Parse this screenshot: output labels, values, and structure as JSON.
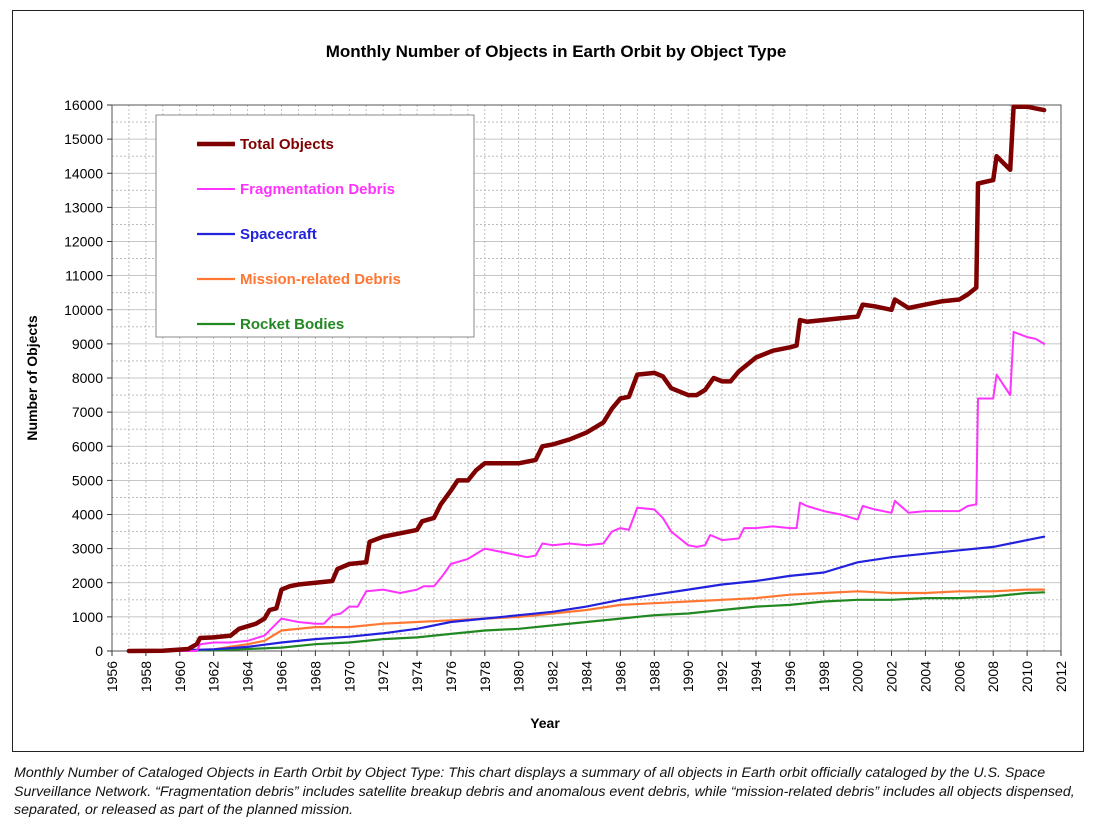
{
  "chart_data": {
    "type": "line",
    "title": "Monthly Number of Objects in Earth Orbit by Object Type",
    "xlabel": "Year",
    "ylabel": "Number of Objects",
    "xlim": [
      1956,
      2012
    ],
    "ylim": [
      0,
      16000
    ],
    "x_ticks": [
      "1956",
      "1958",
      "1960",
      "1962",
      "1964",
      "1966",
      "1968",
      "1970",
      "1972",
      "1974",
      "1976",
      "1978",
      "1980",
      "1982",
      "1984",
      "1986",
      "1988",
      "1990",
      "1992",
      "1994",
      "1996",
      "1998",
      "2000",
      "2002",
      "2004",
      "2006",
      "2008",
      "2010",
      "2012"
    ],
    "y_ticks": [
      "0",
      "1000",
      "2000",
      "3000",
      "4000",
      "5000",
      "6000",
      "7000",
      "8000",
      "9000",
      "10000",
      "11000",
      "12000",
      "13000",
      "14000",
      "15000",
      "16000"
    ],
    "grid": true,
    "legend_position": "top-left",
    "series": [
      {
        "name": "Total Objects",
        "color": "#7f0000",
        "points": [
          [
            1957,
            0
          ],
          [
            1959,
            10
          ],
          [
            1960.5,
            60
          ],
          [
            1961,
            200
          ],
          [
            1961.2,
            380
          ],
          [
            1962,
            400
          ],
          [
            1963,
            450
          ],
          [
            1963.5,
            650
          ],
          [
            1964.5,
            800
          ],
          [
            1965,
            950
          ],
          [
            1965.3,
            1200
          ],
          [
            1965.7,
            1250
          ],
          [
            1966,
            1800
          ],
          [
            1966.5,
            1900
          ],
          [
            1967,
            1950
          ],
          [
            1968,
            2000
          ],
          [
            1969,
            2050
          ],
          [
            1969.3,
            2400
          ],
          [
            1970,
            2550
          ],
          [
            1971,
            2600
          ],
          [
            1971.2,
            3200
          ],
          [
            1972,
            3350
          ],
          [
            1973,
            3450
          ],
          [
            1974,
            3550
          ],
          [
            1974.3,
            3800
          ],
          [
            1975,
            3900
          ],
          [
            1975.4,
            4300
          ],
          [
            1976,
            4700
          ],
          [
            1976.4,
            5000
          ],
          [
            1977,
            5000
          ],
          [
            1977.5,
            5300
          ],
          [
            1978,
            5500
          ],
          [
            1979,
            5500
          ],
          [
            1980,
            5500
          ],
          [
            1981,
            5600
          ],
          [
            1981.4,
            6000
          ],
          [
            1982,
            6050
          ],
          [
            1983,
            6200
          ],
          [
            1984,
            6400
          ],
          [
            1985,
            6700
          ],
          [
            1985.5,
            7100
          ],
          [
            1986,
            7400
          ],
          [
            1986.5,
            7450
          ],
          [
            1987,
            8100
          ],
          [
            1988,
            8150
          ],
          [
            1988.5,
            8050
          ],
          [
            1989,
            7700
          ],
          [
            1990,
            7500
          ],
          [
            1990.5,
            7500
          ],
          [
            1991,
            7650
          ],
          [
            1991.5,
            8000
          ],
          [
            1992,
            7900
          ],
          [
            1992.5,
            7900
          ],
          [
            1993,
            8200
          ],
          [
            1994,
            8600
          ],
          [
            1995,
            8800
          ],
          [
            1996,
            8900
          ],
          [
            1996.4,
            8950
          ],
          [
            1996.6,
            9700
          ],
          [
            1997,
            9650
          ],
          [
            1998,
            9700
          ],
          [
            1999,
            9750
          ],
          [
            2000,
            9800
          ],
          [
            2000.3,
            10150
          ],
          [
            2001,
            10100
          ],
          [
            2002,
            10000
          ],
          [
            2002.2,
            10300
          ],
          [
            2003,
            10050
          ],
          [
            2004,
            10150
          ],
          [
            2005,
            10250
          ],
          [
            2006,
            10300
          ],
          [
            2006.5,
            10450
          ],
          [
            2007,
            10650
          ],
          [
            2007.1,
            13700
          ],
          [
            2008,
            13800
          ],
          [
            2008.2,
            14500
          ],
          [
            2009,
            14100
          ],
          [
            2009.2,
            15950
          ],
          [
            2010,
            15950
          ],
          [
            2010.5,
            15900
          ],
          [
            2011,
            15850
          ]
        ]
      },
      {
        "name": "Fragmentation Debris",
        "color": "#ff33ff",
        "points": [
          [
            1957,
            0
          ],
          [
            1961,
            0
          ],
          [
            1961.2,
            200
          ],
          [
            1962,
            250
          ],
          [
            1963,
            250
          ],
          [
            1964,
            300
          ],
          [
            1965,
            450
          ],
          [
            1965.5,
            700
          ],
          [
            1966,
            950
          ],
          [
            1966.5,
            900
          ],
          [
            1967,
            850
          ],
          [
            1968,
            800
          ],
          [
            1968.5,
            800
          ],
          [
            1969,
            1050
          ],
          [
            1969.5,
            1100
          ],
          [
            1970,
            1300
          ],
          [
            1970.5,
            1300
          ],
          [
            1971,
            1750
          ],
          [
            1972,
            1800
          ],
          [
            1973,
            1700
          ],
          [
            1974,
            1800
          ],
          [
            1974.4,
            1900
          ],
          [
            1975,
            1900
          ],
          [
            1975.5,
            2200
          ],
          [
            1976,
            2550
          ],
          [
            1977,
            2700
          ],
          [
            1978,
            3000
          ],
          [
            1979,
            2900
          ],
          [
            1980,
            2800
          ],
          [
            1980.5,
            2750
          ],
          [
            1981,
            2800
          ],
          [
            1981.4,
            3150
          ],
          [
            1982,
            3100
          ],
          [
            1983,
            3150
          ],
          [
            1984,
            3100
          ],
          [
            1985,
            3150
          ],
          [
            1985.5,
            3500
          ],
          [
            1986,
            3600
          ],
          [
            1986.5,
            3550
          ],
          [
            1987,
            4200
          ],
          [
            1988,
            4150
          ],
          [
            1988.5,
            3900
          ],
          [
            1989,
            3500
          ],
          [
            1990,
            3100
          ],
          [
            1990.5,
            3050
          ],
          [
            1991,
            3100
          ],
          [
            1991.3,
            3400
          ],
          [
            1992,
            3250
          ],
          [
            1993,
            3300
          ],
          [
            1993.3,
            3600
          ],
          [
            1994,
            3600
          ],
          [
            1995,
            3650
          ],
          [
            1996,
            3600
          ],
          [
            1996.4,
            3600
          ],
          [
            1996.6,
            4350
          ],
          [
            1997,
            4250
          ],
          [
            1998,
            4100
          ],
          [
            1999,
            4000
          ],
          [
            2000,
            3850
          ],
          [
            2000.3,
            4250
          ],
          [
            2001,
            4150
          ],
          [
            2002,
            4050
          ],
          [
            2002.2,
            4400
          ],
          [
            2003,
            4050
          ],
          [
            2004,
            4100
          ],
          [
            2005,
            4100
          ],
          [
            2006,
            4100
          ],
          [
            2006.5,
            4250
          ],
          [
            2007,
            4300
          ],
          [
            2007.1,
            7400
          ],
          [
            2008,
            7400
          ],
          [
            2008.2,
            8100
          ],
          [
            2009,
            7500
          ],
          [
            2009.2,
            9350
          ],
          [
            2010,
            9200
          ],
          [
            2010.5,
            9150
          ],
          [
            2011,
            9000
          ]
        ]
      },
      {
        "name": "Spacecraft",
        "color": "#2222dd",
        "points": [
          [
            1957,
            0
          ],
          [
            1960,
            20
          ],
          [
            1962,
            50
          ],
          [
            1964,
            120
          ],
          [
            1966,
            250
          ],
          [
            1968,
            350
          ],
          [
            1970,
            420
          ],
          [
            1972,
            520
          ],
          [
            1974,
            650
          ],
          [
            1976,
            850
          ],
          [
            1978,
            950
          ],
          [
            1980,
            1050
          ],
          [
            1982,
            1150
          ],
          [
            1984,
            1300
          ],
          [
            1986,
            1500
          ],
          [
            1988,
            1650
          ],
          [
            1990,
            1800
          ],
          [
            1992,
            1950
          ],
          [
            1994,
            2050
          ],
          [
            1996,
            2200
          ],
          [
            1998,
            2300
          ],
          [
            2000,
            2600
          ],
          [
            2002,
            2750
          ],
          [
            2004,
            2850
          ],
          [
            2006,
            2950
          ],
          [
            2008,
            3050
          ],
          [
            2010,
            3250
          ],
          [
            2011,
            3350
          ]
        ]
      },
      {
        "name": "Mission-related Debris",
        "color": "#ff7733",
        "points": [
          [
            1957,
            0
          ],
          [
            1960,
            20
          ],
          [
            1962,
            50
          ],
          [
            1964,
            200
          ],
          [
            1965,
            300
          ],
          [
            1966,
            600
          ],
          [
            1968,
            700
          ],
          [
            1970,
            700
          ],
          [
            1972,
            800
          ],
          [
            1974,
            850
          ],
          [
            1976,
            900
          ],
          [
            1978,
            950
          ],
          [
            1980,
            1000
          ],
          [
            1982,
            1100
          ],
          [
            1984,
            1200
          ],
          [
            1986,
            1350
          ],
          [
            1988,
            1400
          ],
          [
            1990,
            1450
          ],
          [
            1992,
            1500
          ],
          [
            1994,
            1550
          ],
          [
            1996,
            1650
          ],
          [
            1998,
            1700
          ],
          [
            2000,
            1750
          ],
          [
            2002,
            1700
          ],
          [
            2004,
            1700
          ],
          [
            2006,
            1750
          ],
          [
            2008,
            1750
          ],
          [
            2010,
            1800
          ],
          [
            2011,
            1800
          ]
        ]
      },
      {
        "name": "Rocket Bodies",
        "color": "#228822",
        "points": [
          [
            1957,
            0
          ],
          [
            1960,
            10
          ],
          [
            1962,
            20
          ],
          [
            1964,
            60
          ],
          [
            1966,
            100
          ],
          [
            1968,
            200
          ],
          [
            1970,
            250
          ],
          [
            1972,
            350
          ],
          [
            1974,
            400
          ],
          [
            1976,
            500
          ],
          [
            1978,
            600
          ],
          [
            1980,
            650
          ],
          [
            1982,
            750
          ],
          [
            1984,
            850
          ],
          [
            1986,
            950
          ],
          [
            1988,
            1050
          ],
          [
            1990,
            1100
          ],
          [
            1992,
            1200
          ],
          [
            1994,
            1300
          ],
          [
            1996,
            1350
          ],
          [
            1998,
            1450
          ],
          [
            2000,
            1500
          ],
          [
            2002,
            1500
          ],
          [
            2004,
            1550
          ],
          [
            2006,
            1550
          ],
          [
            2008,
            1600
          ],
          [
            2010,
            1700
          ],
          [
            2011,
            1720
          ]
        ]
      }
    ]
  },
  "caption": "Monthly Number of Cataloged Objects in Earth Orbit by Object Type: This chart displays a summary of all objects in Earth orbit officially cataloged by the U.S. Space Surveillance Network. “Fragmentation debris” includes satellite breakup debris and anomalous event debris, while “mission-related debris” includes all objects dispensed, separated, or released as part of the planned mission."
}
